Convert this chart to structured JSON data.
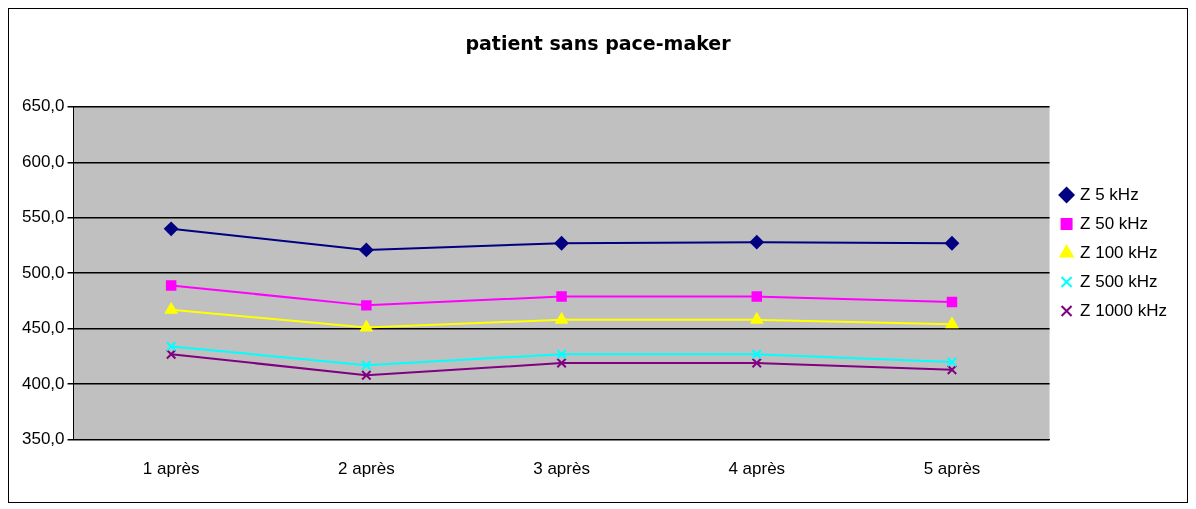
{
  "chart_data": {
    "type": "line",
    "title": "patient sans pace-maker",
    "categories": [
      "1 après",
      "2 après",
      "3 après",
      "4 après",
      "5 après"
    ],
    "series": [
      {
        "name": "Z 5 kHz",
        "color": "#000080",
        "marker": "diamond",
        "values": [
          540,
          521,
          527,
          528,
          527
        ]
      },
      {
        "name": "Z 50 kHz",
        "color": "#ff00ff",
        "marker": "square",
        "values": [
          489,
          471,
          479,
          479,
          474
        ]
      },
      {
        "name": "Z 100 kHz",
        "color": "#ffff00",
        "marker": "triangle",
        "values": [
          467,
          451,
          458,
          458,
          454
        ]
      },
      {
        "name": "Z 500 kHz",
        "color": "#00ffff",
        "marker": "cross",
        "values": [
          434,
          417,
          427,
          427,
          420
        ]
      },
      {
        "name": "Z 1000 kHz",
        "color": "#800080",
        "marker": "cross",
        "values": [
          427,
          408,
          419,
          419,
          413
        ]
      }
    ],
    "ylim": [
      350,
      650
    ],
    "yticks": [
      {
        "value": 350,
        "label": "350,0"
      },
      {
        "value": 400,
        "label": "400,0"
      },
      {
        "value": 450,
        "label": "450,0"
      },
      {
        "value": 500,
        "label": "500,0"
      },
      {
        "value": 550,
        "label": "550,0"
      },
      {
        "value": 600,
        "label": "600,0"
      },
      {
        "value": 650,
        "label": "650,0"
      }
    ],
    "grid": "y",
    "legend": "right"
  }
}
